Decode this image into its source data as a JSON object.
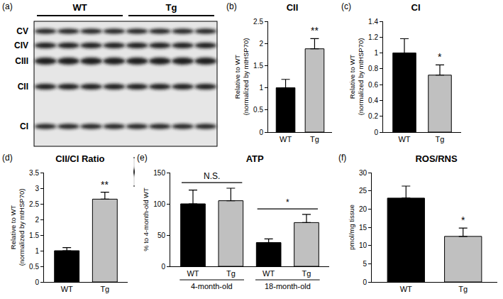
{
  "chart_data": [
    {
      "type": "blot",
      "label": "(a)",
      "groups": [
        {
          "name": "WT",
          "lanes": 4
        },
        {
          "name": "Tg",
          "lanes": 4
        }
      ],
      "bands": [
        "CV",
        "CIV",
        "CIII",
        "CII",
        "CI"
      ],
      "loading_control": "mt HSP70"
    },
    {
      "type": "bar",
      "label": "(b)",
      "title": "CII",
      "y_label": "Relative to WT\n(normalized by mtHSP70)",
      "categories": [
        "WT",
        "Tg"
      ],
      "values": [
        1.0,
        1.88
      ],
      "errors": [
        0.19,
        0.23
      ],
      "colors": [
        "#000000",
        "#c0c0c0"
      ],
      "ylim": [
        0,
        2.5
      ],
      "yticks": [
        0,
        0.5,
        1,
        1.5,
        2,
        2.5
      ],
      "grid": false,
      "annotations": [
        {
          "text": "**",
          "x": 1
        }
      ]
    },
    {
      "type": "bar",
      "label": "(c)",
      "title": "CI",
      "y_label": "Relative to WT\n(normalized by mtHSP70)",
      "categories": [
        "WT",
        "Tg"
      ],
      "values": [
        1.0,
        0.72
      ],
      "errors": [
        0.18,
        0.13
      ],
      "colors": [
        "#000000",
        "#c0c0c0"
      ],
      "ylim": [
        0,
        1.4
      ],
      "yticks": [
        0,
        0.2,
        0.4,
        0.6,
        0.8,
        1,
        1.2,
        1.4
      ],
      "grid": false,
      "annotations": [
        {
          "text": "*",
          "x": 1
        }
      ]
    },
    {
      "type": "bar",
      "label": "(d)",
      "title": "CII/CI Ratio",
      "y_label": "Relative to WT\n(normalized by mtHSP70)",
      "categories": [
        "WT",
        "Tg"
      ],
      "values": [
        1.0,
        2.65
      ],
      "errors": [
        0.1,
        0.22
      ],
      "colors": [
        "#000000",
        "#c0c0c0"
      ],
      "ylim": [
        0,
        3.5
      ],
      "yticks": [
        0,
        0.5,
        1,
        1.5,
        2,
        2.5,
        3,
        3.5
      ],
      "grid": false,
      "annotations": [
        {
          "text": "**",
          "x": 1
        }
      ]
    },
    {
      "type": "bar",
      "label": "(e)",
      "title": "ATP",
      "y_label": "% to 4-month-old WT",
      "categories": [
        "WT",
        "Tg",
        "WT",
        "Tg"
      ],
      "values": [
        100,
        105,
        38,
        70
      ],
      "errors": [
        22,
        20,
        6,
        13
      ],
      "groups": [
        "4-month-old",
        "4-month-old",
        "18-month-old",
        "18-month-old"
      ],
      "colors": [
        "#000000",
        "#c0c0c0",
        "#000000",
        "#c0c0c0"
      ],
      "ylim": [
        0,
        150
      ],
      "yticks": [
        0,
        50,
        100,
        150
      ],
      "grid": false,
      "annotations": [
        {
          "text": "N.S.",
          "between": [
            0,
            1
          ]
        },
        {
          "text": "*",
          "between": [
            2,
            3
          ]
        }
      ]
    },
    {
      "type": "bar",
      "label": "(f)",
      "title": "ROS/RNS",
      "y_label": "pmol/mg tissue",
      "categories": [
        "WT",
        "Tg"
      ],
      "values": [
        23,
        12.5
      ],
      "errors": [
        3.3,
        2.3
      ],
      "colors": [
        "#000000",
        "#c0c0c0"
      ],
      "ylim": [
        0,
        30
      ],
      "yticks": [
        0,
        5,
        10,
        15,
        20,
        25,
        30
      ],
      "grid": false,
      "annotations": [
        {
          "text": "*",
          "x": 1
        }
      ]
    }
  ]
}
